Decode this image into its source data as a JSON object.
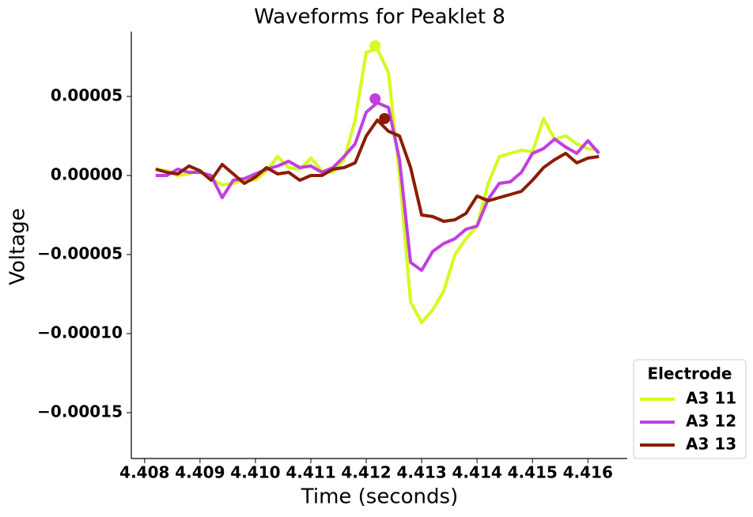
{
  "chart_data": {
    "type": "line",
    "title": "Waveforms for Peaklet 8",
    "x_label": "Time (seconds)",
    "y_label": "Voltage",
    "x": [
      4.4082,
      4.4084,
      4.4086,
      4.4088,
      4.409,
      4.4092,
      4.4094,
      4.4096,
      4.4098,
      4.41,
      4.4102,
      4.4104,
      4.4106,
      4.4108,
      4.411,
      4.4112,
      4.4114,
      4.4116,
      4.4118,
      4.412,
      4.4122,
      4.4124,
      4.4126,
      4.4128,
      4.413,
      4.4132,
      4.4134,
      4.4136,
      4.4138,
      4.414,
      4.4142,
      4.4144,
      4.4146,
      4.4148,
      4.415,
      4.4152,
      4.4154,
      4.4156,
      4.4158,
      4.416,
      4.4162
    ],
    "series": [
      {
        "name": "A3 11",
        "color": "#d4fb1c",
        "values": [
          4e-06,
          3e-06,
          0,
          1e-06,
          3e-06,
          -2e-06,
          -6e-06,
          -5e-06,
          -3e-06,
          -3e-06,
          3e-06,
          1.2e-05,
          5e-06,
          4e-06,
          1.1e-05,
          3e-06,
          2e-06,
          1e-05,
          3.5e-05,
          7.8e-05,
          8e-05,
          6.5e-05,
          0,
          -8e-05,
          -9.3e-05,
          -8.5e-05,
          -7.3e-05,
          -5e-05,
          -4e-05,
          -3.2e-05,
          -5e-06,
          1.2e-05,
          1.4e-05,
          1.6e-05,
          1.5e-05,
          3.6e-05,
          2.3e-05,
          2.5e-05,
          2e-05,
          1.7e-05,
          1.6e-05
        ],
        "peak": {
          "x": 4.41216,
          "y": 8.2e-05
        }
      },
      {
        "name": "A3 12",
        "color": "#c13fe0",
        "values": [
          0,
          0,
          4e-06,
          2e-06,
          2e-06,
          0,
          -1.4e-05,
          -3e-06,
          -2e-06,
          1e-06,
          4e-06,
          6e-06,
          9e-06,
          5e-06,
          6e-06,
          2e-06,
          5e-06,
          1.2e-05,
          2e-05,
          4e-05,
          4.6e-05,
          4.3e-05,
          1e-05,
          -5.5e-05,
          -6e-05,
          -4.8e-05,
          -4.3e-05,
          -4e-05,
          -3.4e-05,
          -3.2e-05,
          -1.5e-05,
          -5e-06,
          -4e-06,
          2e-06,
          1.4e-05,
          1.7e-05,
          2.3e-05,
          1.8e-05,
          1.4e-05,
          2.2e-05,
          1.4e-05
        ],
        "peak": {
          "x": 4.41216,
          "y": 4.85e-05
        }
      },
      {
        "name": "A3 13",
        "color": "#8b1c00",
        "values": [
          4e-06,
          2e-06,
          1e-06,
          6e-06,
          3e-06,
          -3e-06,
          7e-06,
          1e-06,
          -5e-06,
          -1e-06,
          5e-06,
          1e-06,
          2e-06,
          -3e-06,
          0,
          0,
          4e-06,
          5e-06,
          8e-06,
          2.5e-05,
          3.5e-05,
          2.8e-05,
          2.5e-05,
          5e-06,
          -2.5e-05,
          -2.6e-05,
          -2.9e-05,
          -2.8e-05,
          -2.4e-05,
          -1.3e-05,
          -1.6e-05,
          -1.4e-05,
          -1.2e-05,
          -1e-05,
          -3e-06,
          5e-06,
          1e-05,
          1.4e-05,
          8e-06,
          1.1e-05,
          1.2e-05
        ],
        "peak": {
          "x": 4.41233,
          "y": 3.6e-05
        }
      }
    ],
    "xlim": [
      4.40776,
      4.41671
    ],
    "xticks": [
      4.408,
      4.409,
      {
        "value": 4.41,
        "label": "4.410"
      },
      4.411,
      4.412,
      4.413,
      4.414,
      4.415,
      4.416
    ],
    "ylim": [
      -0.000179,
      9.1e-05
    ],
    "yticks": [
      {
        "value": -0.00015,
        "label": "−0.00015"
      },
      {
        "value": -0.0001,
        "label": "−0.00010"
      },
      {
        "value": -5e-05,
        "label": "−0.00005"
      },
      {
        "value": 0,
        "label": "0.00000"
      },
      {
        "value": 5e-05,
        "label": "0.00005"
      }
    ],
    "legend": {
      "title": "Electrode",
      "position": "lower right outside"
    }
  }
}
